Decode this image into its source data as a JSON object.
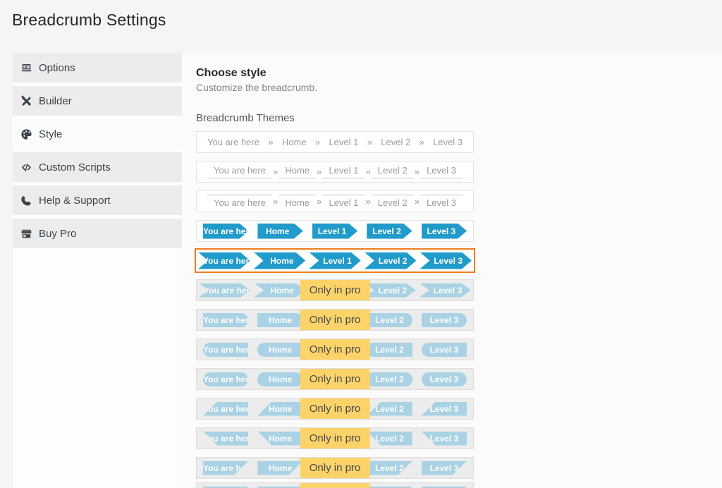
{
  "page": {
    "title": "Breadcrumb Settings"
  },
  "sidebar": {
    "items": [
      {
        "id": "options",
        "label": "Options",
        "icon": "laptop-icon",
        "active": false
      },
      {
        "id": "builder",
        "label": "Builder",
        "icon": "tools-icon",
        "active": false
      },
      {
        "id": "style",
        "label": "Style",
        "icon": "palette-icon",
        "active": true
      },
      {
        "id": "custom-scripts",
        "label": "Custom Scripts",
        "icon": "code-icon",
        "active": false
      },
      {
        "id": "help-support",
        "label": "Help & Support",
        "icon": "phone-icon",
        "active": false
      },
      {
        "id": "buy-pro",
        "label": "Buy Pro",
        "icon": "store-icon",
        "active": false
      }
    ]
  },
  "main": {
    "heading": "Choose style",
    "subheading": "Customize the breadcrumb.",
    "section_label": "Breadcrumb Themes",
    "separator": "»",
    "crumbs": [
      "You are here",
      "Home",
      "Level 1",
      "Level 2",
      "Level 3"
    ],
    "pro_badge_label": "Only in pro",
    "themes": [
      {
        "id": "plain",
        "style": "plain",
        "pro": false,
        "selected": false
      },
      {
        "id": "underline",
        "style": "underline",
        "pro": false,
        "selected": false
      },
      {
        "id": "overline",
        "style": "overline",
        "pro": false,
        "selected": false
      },
      {
        "id": "arrow",
        "style": "arrow",
        "pro": false,
        "selected": false
      },
      {
        "id": "chevron",
        "style": "chevron",
        "pro": false,
        "selected": true
      },
      {
        "id": "chevron-pro",
        "style": "chevron",
        "pro": true,
        "selected": false
      },
      {
        "id": "rounded-right",
        "style": "rounded-right",
        "pro": true,
        "selected": false
      },
      {
        "id": "rounded-left",
        "style": "rounded-left",
        "pro": true,
        "selected": false
      },
      {
        "id": "pill",
        "style": "pill",
        "pro": true,
        "selected": false
      },
      {
        "id": "slant-up",
        "style": "slant-up",
        "pro": true,
        "selected": false
      },
      {
        "id": "slant-down",
        "style": "slant-down",
        "pro": true,
        "selected": false
      },
      {
        "id": "slant-right",
        "style": "slant-right",
        "pro": true,
        "selected": false
      },
      {
        "id": "cutoff",
        "style": "slant-right",
        "pro": true,
        "selected": false,
        "partial": true
      }
    ]
  },
  "colors": {
    "accent_blue": "#209bca",
    "pro_light_blue": "#a9d2e4",
    "badge_yellow": "#fbd369",
    "selected_orange": "#ee7c1b"
  }
}
